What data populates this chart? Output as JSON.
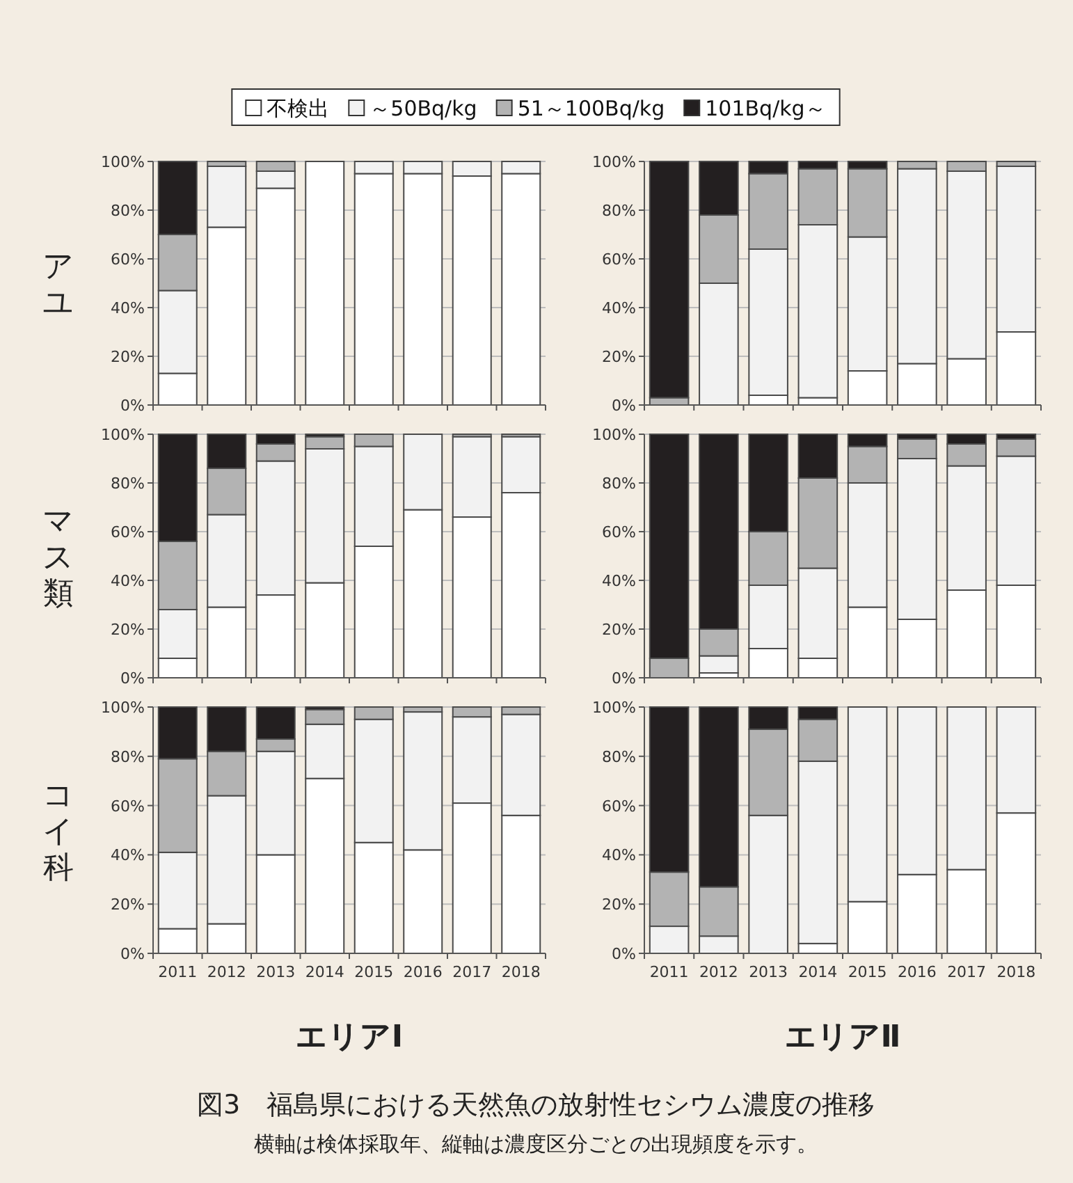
{
  "chart_data": [
    {
      "type": "bar",
      "stacked": true,
      "title": "図3　福島県における天然魚の放射性セシウム濃度の推移",
      "subtitle": "横軸は検体採取年、縦軸は濃度区分ごとの出現頻度を示す。",
      "ylabel": "アユ",
      "legend": "top",
      "grid": "y",
      "tick_labels": "y",
      "categories": [
        "2011",
        "2012",
        "2013",
        "2014",
        "2015",
        "2016",
        "2017",
        "2018"
      ],
      "ylim": [
        0,
        100
      ],
      "yticks": [
        {
          "value": 0,
          "label": "0%"
        },
        {
          "value": 20,
          "label": "20%"
        },
        {
          "value": 40,
          "label": "40%"
        },
        {
          "value": 60,
          "label": "60%"
        },
        {
          "value": 80,
          "label": "80%"
        },
        {
          "value": 100,
          "label": "100%"
        }
      ],
      "series": [
        {
          "name": "不検出",
          "color": "#ffffff",
          "values": [
            13,
            73,
            89,
            100,
            95,
            95,
            94,
            95
          ]
        },
        {
          "name": "～50Bq/kg",
          "color": "#f2f2f2",
          "values": [
            34,
            25,
            7,
            0,
            5,
            5,
            6,
            5
          ]
        },
        {
          "name": "51～100Bq/kg",
          "color": "#b3b3b3",
          "values": [
            23,
            2,
            4,
            0,
            0,
            0,
            0,
            0
          ]
        },
        {
          "name": "101Bq/kg～",
          "color": "#231f20",
          "values": [
            30,
            0,
            0,
            0,
            0,
            0,
            0,
            0
          ]
        }
      ]
    },
    {
      "type": "bar",
      "stacked": true,
      "grid": "y",
      "tick_labels": "y",
      "categories": [
        "2011",
        "2012",
        "2013",
        "2014",
        "2015",
        "2016",
        "2017",
        "2018"
      ],
      "ylim": [
        0,
        100
      ],
      "yticks": [
        {
          "value": 0,
          "label": "0%"
        },
        {
          "value": 20,
          "label": "20%"
        },
        {
          "value": 40,
          "label": "40%"
        },
        {
          "value": 60,
          "label": "60%"
        },
        {
          "value": 80,
          "label": "80%"
        },
        {
          "value": 100,
          "label": "100%"
        }
      ],
      "series": [
        {
          "color": "#ffffff",
          "values": [
            0,
            0,
            4,
            3,
            14,
            17,
            19,
            30
          ]
        },
        {
          "color": "#f2f2f2",
          "values": [
            0,
            50,
            60,
            71,
            55,
            80,
            77,
            68
          ]
        },
        {
          "color": "#b3b3b3",
          "values": [
            3,
            28,
            31,
            23,
            28,
            3,
            4,
            2
          ]
        },
        {
          "color": "#231f20",
          "values": [
            97,
            22,
            5,
            3,
            3,
            0,
            0,
            0
          ]
        }
      ]
    },
    {
      "type": "bar",
      "stacked": true,
      "ylabel": "マス類",
      "grid": "y",
      "tick_labels": "y",
      "categories": [
        "2011",
        "2012",
        "2013",
        "2014",
        "2015",
        "2016",
        "2017",
        "2018"
      ],
      "ylim": [
        0,
        100
      ],
      "yticks": [
        {
          "value": 0,
          "label": "0%"
        },
        {
          "value": 20,
          "label": "20%"
        },
        {
          "value": 40,
          "label": "40%"
        },
        {
          "value": 60,
          "label": "60%"
        },
        {
          "value": 80,
          "label": "80%"
        },
        {
          "value": 100,
          "label": "100%"
        }
      ],
      "series": [
        {
          "color": "#ffffff",
          "values": [
            8,
            29,
            34,
            39,
            54,
            69,
            66,
            76
          ]
        },
        {
          "color": "#f2f2f2",
          "values": [
            20,
            38,
            55,
            55,
            41,
            31,
            33,
            23
          ]
        },
        {
          "color": "#b3b3b3",
          "values": [
            28,
            19,
            7,
            5,
            5,
            0,
            1,
            1
          ]
        },
        {
          "color": "#231f20",
          "values": [
            44,
            14,
            4,
            1,
            0,
            0,
            0,
            0
          ]
        }
      ]
    },
    {
      "type": "bar",
      "stacked": true,
      "grid": "y",
      "tick_labels": "y",
      "categories": [
        "2011",
        "2012",
        "2013",
        "2014",
        "2015",
        "2016",
        "2017",
        "2018"
      ],
      "ylim": [
        0,
        100
      ],
      "yticks": [
        {
          "value": 0,
          "label": "0%"
        },
        {
          "value": 20,
          "label": "20%"
        },
        {
          "value": 40,
          "label": "40%"
        },
        {
          "value": 60,
          "label": "60%"
        },
        {
          "value": 80,
          "label": "80%"
        },
        {
          "value": 100,
          "label": "100%"
        }
      ],
      "series": [
        {
          "color": "#ffffff",
          "values": [
            0,
            2,
            12,
            8,
            29,
            24,
            36,
            38
          ]
        },
        {
          "color": "#f2f2f2",
          "values": [
            0,
            7,
            26,
            37,
            51,
            66,
            51,
            53
          ]
        },
        {
          "color": "#b3b3b3",
          "values": [
            8,
            11,
            22,
            37,
            15,
            8,
            9,
            7
          ]
        },
        {
          "color": "#231f20",
          "values": [
            92,
            80,
            40,
            18,
            5,
            2,
            4,
            2
          ]
        }
      ]
    },
    {
      "type": "bar",
      "stacked": true,
      "ylabel": "コイ科",
      "xlabel": "エリアⅠ",
      "grid": "y",
      "categories": [
        "2011",
        "2012",
        "2013",
        "2014",
        "2015",
        "2016",
        "2017",
        "2018"
      ],
      "ylim": [
        0,
        100
      ],
      "yticks": [
        {
          "value": 0,
          "label": "0%"
        },
        {
          "value": 20,
          "label": "20%"
        },
        {
          "value": 40,
          "label": "40%"
        },
        {
          "value": 60,
          "label": "60%"
        },
        {
          "value": 80,
          "label": "80%"
        },
        {
          "value": 100,
          "label": "100%"
        }
      ],
      "series": [
        {
          "color": "#ffffff",
          "values": [
            10,
            12,
            40,
            71,
            45,
            42,
            61,
            56
          ]
        },
        {
          "color": "#f2f2f2",
          "values": [
            31,
            52,
            42,
            22,
            50,
            56,
            35,
            41
          ]
        },
        {
          "color": "#b3b3b3",
          "values": [
            38,
            18,
            5,
            6,
            5,
            2,
            4,
            3
          ]
        },
        {
          "color": "#231f20",
          "values": [
            21,
            18,
            13,
            1,
            0,
            0,
            0,
            0
          ]
        }
      ]
    },
    {
      "type": "bar",
      "stacked": true,
      "xlabel": "エリアⅡ",
      "grid": "y",
      "categories": [
        "2011",
        "2012",
        "2013",
        "2014",
        "2015",
        "2016",
        "2017",
        "2018"
      ],
      "ylim": [
        0,
        100
      ],
      "yticks": [
        {
          "value": 0,
          "label": "0%"
        },
        {
          "value": 20,
          "label": "20%"
        },
        {
          "value": 40,
          "label": "40%"
        },
        {
          "value": 60,
          "label": "60%"
        },
        {
          "value": 80,
          "label": "80%"
        },
        {
          "value": 100,
          "label": "100%"
        }
      ],
      "series": [
        {
          "color": "#ffffff",
          "values": [
            0,
            0,
            0,
            4,
            21,
            32,
            34,
            57
          ]
        },
        {
          "color": "#f2f2f2",
          "values": [
            11,
            7,
            56,
            74,
            79,
            68,
            66,
            43
          ]
        },
        {
          "color": "#b3b3b3",
          "values": [
            22,
            20,
            35,
            17,
            0,
            0,
            0,
            0
          ]
        },
        {
          "color": "#231f20",
          "values": [
            67,
            73,
            9,
            5,
            0,
            0,
            0,
            0
          ]
        }
      ]
    }
  ]
}
